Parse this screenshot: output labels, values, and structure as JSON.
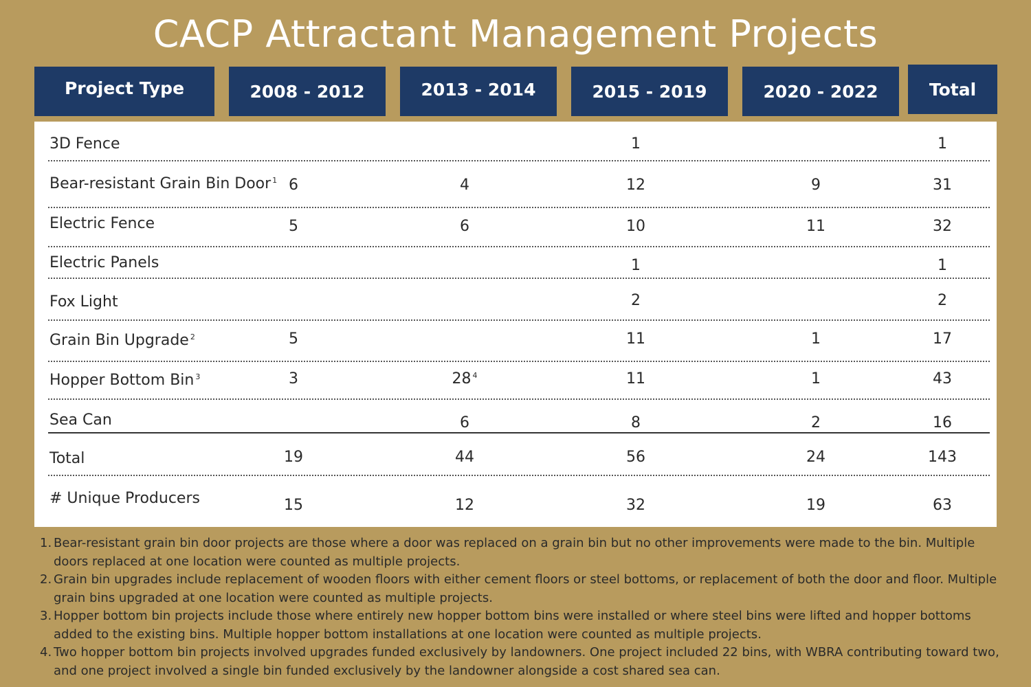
{
  "title": "CACP Attractant Management Projects",
  "headers": [
    "Project Type",
    "2008 - 2012",
    "2013 - 2014",
    "2015 - 2019",
    "2020 - 2022",
    "Total"
  ],
  "rows": [
    {
      "label": "3D Fence",
      "sup": "",
      "v1": "",
      "v2": "",
      "v3": "1",
      "v4": "",
      "total": "1"
    },
    {
      "label": "Bear-resistant Grain Bin Door",
      "sup": "1",
      "v1": "6",
      "v2": "4",
      "v3": "12",
      "v4": "9",
      "total": "31"
    },
    {
      "label": "Electric Fence",
      "sup": "",
      "v1": "5",
      "v2": "6",
      "v3": "10",
      "v4": "11",
      "total": "32"
    },
    {
      "label": "Electric Panels",
      "sup": "",
      "v1": "",
      "v2": "",
      "v3": "1",
      "v4": "",
      "total": "1"
    },
    {
      "label": "Fox Light",
      "sup": "",
      "v1": "",
      "v2": "",
      "v3": "2",
      "v4": "",
      "total": "2"
    },
    {
      "label": "Grain Bin Upgrade",
      "sup": "2",
      "v1": "5",
      "v2": "",
      "v3": "11",
      "v4": "1",
      "total": "17"
    },
    {
      "label": "Hopper Bottom Bin",
      "sup": "3",
      "v1": "3",
      "v2": "28",
      "v2_sup": "4",
      "v3": "11",
      "v4": "1",
      "total": "43"
    },
    {
      "label": "Sea Can",
      "sup": "",
      "v1": "",
      "v2": "6",
      "v3": "8",
      "v4": "2",
      "total": "16"
    },
    {
      "label": "Total",
      "sup": "",
      "v1": "19",
      "v2": "44",
      "v3": "56",
      "v4": "24",
      "total": "143"
    },
    {
      "label": "# Unique Producers",
      "sup": "",
      "v1": "15",
      "v2": "12",
      "v3": "32",
      "v4": "19",
      "total": "63"
    }
  ],
  "notes": [
    {
      "n": "1.",
      "text": "Bear-resistant grain bin door projects are those where a door was replaced on a grain bin but no other improvements were made to the bin. Multiple doors replaced at one location were counted as multiple projects."
    },
    {
      "n": "2.",
      "text": "Grain bin upgrades include replacement of wooden floors with either cement floors or steel bottoms, or replacement of both the door and floor. Multiple grain bins upgraded at one location were counted as multiple projects."
    },
    {
      "n": "3.",
      "text": "Hopper bottom bin projects include those where entirely new hopper bottom bins were installed or where steel bins were lifted and hopper bottoms added to the existing bins. Multiple hopper bottom installations at one location were counted as multiple projects."
    },
    {
      "n": "4.",
      "text": "Two hopper bottom bin projects involved upgrades funded exclusively by landowners. One project included 22 bins, with WBRA contributing toward two, and one project involved a single bin funded exclusively by the landowner alongside a cost shared sea can."
    }
  ],
  "colors": {
    "background": "#b89b5e",
    "header": "#1e3a66",
    "panel": "#ffffff"
  }
}
